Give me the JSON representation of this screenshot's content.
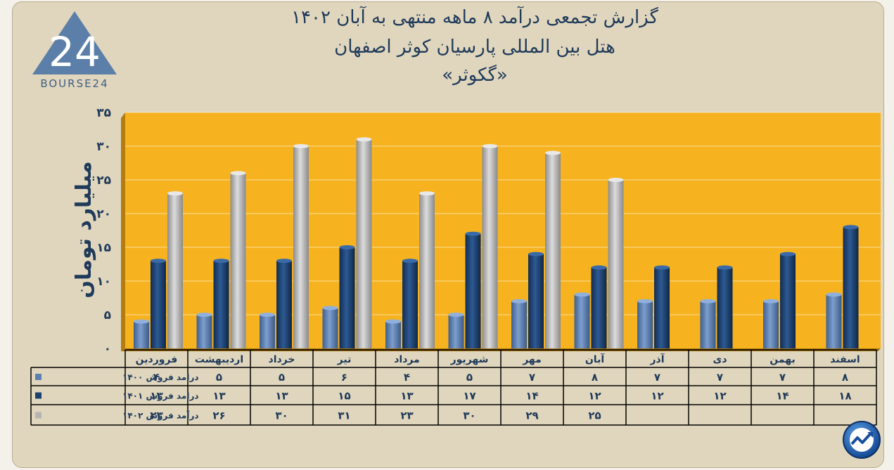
{
  "header": {
    "title_line1": "گزارش تجمعی درآمد ۸ ماهه منتهی به آبان ۱۴۰۲",
    "title_line2": "هتل بین المللی پارسیان کوثر اصفهان",
    "title_line3": "«گکوثر»"
  },
  "logo": {
    "number": "24",
    "text": "BOURSE24"
  },
  "colors": {
    "plot_bg": "#f6b31f",
    "series_1400": "#5b80b2",
    "series_1401": "#1d3f6e",
    "series_1402": "#b4b4b4",
    "axis_text": "#1f3a5a"
  },
  "badge_icon": "trend-up-icon",
  "chart_data": {
    "type": "bar",
    "ylabel": "میلیارد تومان",
    "ylim": [
      0,
      35
    ],
    "yticks": [
      "۰",
      "۵",
      "۱۰",
      "۱۵",
      "۲۰",
      "۲۵",
      "۳۰",
      "۳۵"
    ],
    "ytick_values": [
      0,
      5,
      10,
      15,
      20,
      25,
      30,
      35
    ],
    "categories": [
      "فروردین",
      "اردیبهشت",
      "خرداد",
      "تیر",
      "مرداد",
      "شهریور",
      "مهر",
      "آبان",
      "آذر",
      "دی",
      "بهمن",
      "اسفند"
    ],
    "series": [
      {
        "name": "درامد فروش ۱۴۰۰",
        "values": [
          4,
          5,
          5,
          6,
          4,
          5,
          7,
          8,
          7,
          7,
          7,
          8
        ],
        "labels": [
          "۴",
          "۵",
          "۵",
          "۶",
          "۴",
          "۵",
          "۷",
          "۸",
          "۷",
          "۷",
          "۷",
          "۸"
        ]
      },
      {
        "name": "درامد فروش ۱۴۰۱",
        "values": [
          13,
          13,
          13,
          15,
          13,
          17,
          14,
          12,
          12,
          12,
          14,
          18
        ],
        "labels": [
          "۱۳",
          "۱۳",
          "۱۳",
          "۱۵",
          "۱۳",
          "۱۷",
          "۱۴",
          "۱۲",
          "۱۲",
          "۱۲",
          "۱۴",
          "۱۸"
        ]
      },
      {
        "name": "درآمد فروش ۱۴۰۲",
        "values": [
          23,
          26,
          30,
          31,
          23,
          30,
          29,
          25,
          null,
          null,
          null,
          null
        ],
        "labels": [
          "۲۳",
          "۲۶",
          "۳۰",
          "۳۱",
          "۲۳",
          "۳۰",
          "۲۹",
          "۲۵",
          "",
          "",
          "",
          ""
        ]
      }
    ],
    "grid": true,
    "legend": "data-table"
  }
}
